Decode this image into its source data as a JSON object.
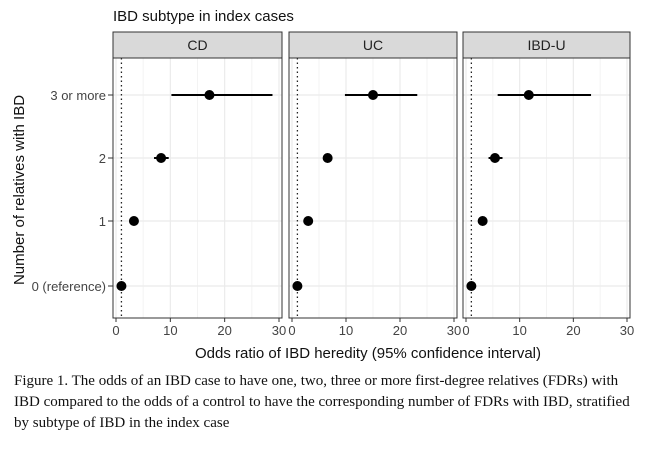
{
  "caption": "Figure 1. The odds of an IBD case to have one, two, three or more first-degree relatives (FDRs) with IBD compared to the odds of a control to have the corresponding number of FDRs with IBD, stratified by subtype of IBD in the index case",
  "chart_data": {
    "type": "scatter",
    "title": "IBD subtype in index cases",
    "xlabel": "Odds ratio of IBD heredity (95% confidence interval)",
    "ylabel": "Number of relatives with IBD",
    "categories": [
      "0 (reference)",
      "1",
      "2",
      "3 or more"
    ],
    "xlim": [
      0,
      30
    ],
    "xticks": [
      0,
      10,
      20,
      30
    ],
    "reference_line_x": 1,
    "grid": true,
    "colors": {
      "panel_strip": "#d9d9d9",
      "point": "#000000",
      "grid": "#ebebeb"
    },
    "panels": [
      {
        "name": "CD",
        "points": [
          {
            "category": "0 (reference)",
            "x": 1.0,
            "ci": null
          },
          {
            "category": "1",
            "x": 3.3,
            "ci": null
          },
          {
            "category": "2",
            "x": 8.3,
            "ci": [
              7.0,
              9.7
            ]
          },
          {
            "category": "3 or more",
            "x": 17.2,
            "ci": [
              10.2,
              28.8
            ]
          }
        ]
      },
      {
        "name": "UC",
        "points": [
          {
            "category": "0 (reference)",
            "x": 1.0,
            "ci": null
          },
          {
            "category": "1",
            "x": 3.0,
            "ci": null
          },
          {
            "category": "2",
            "x": 6.6,
            "ci": null
          },
          {
            "category": "3 or more",
            "x": 15.0,
            "ci": [
              9.8,
              23.2
            ]
          }
        ]
      },
      {
        "name": "IBD-U",
        "points": [
          {
            "category": "0 (reference)",
            "x": 1.0,
            "ci": null
          },
          {
            "category": "1",
            "x": 3.1,
            "ci": null
          },
          {
            "category": "2",
            "x": 5.4,
            "ci": [
              4.2,
              6.8
            ]
          },
          {
            "category": "3 or more",
            "x": 11.7,
            "ci": [
              5.9,
              23.3
            ]
          }
        ]
      }
    ]
  }
}
